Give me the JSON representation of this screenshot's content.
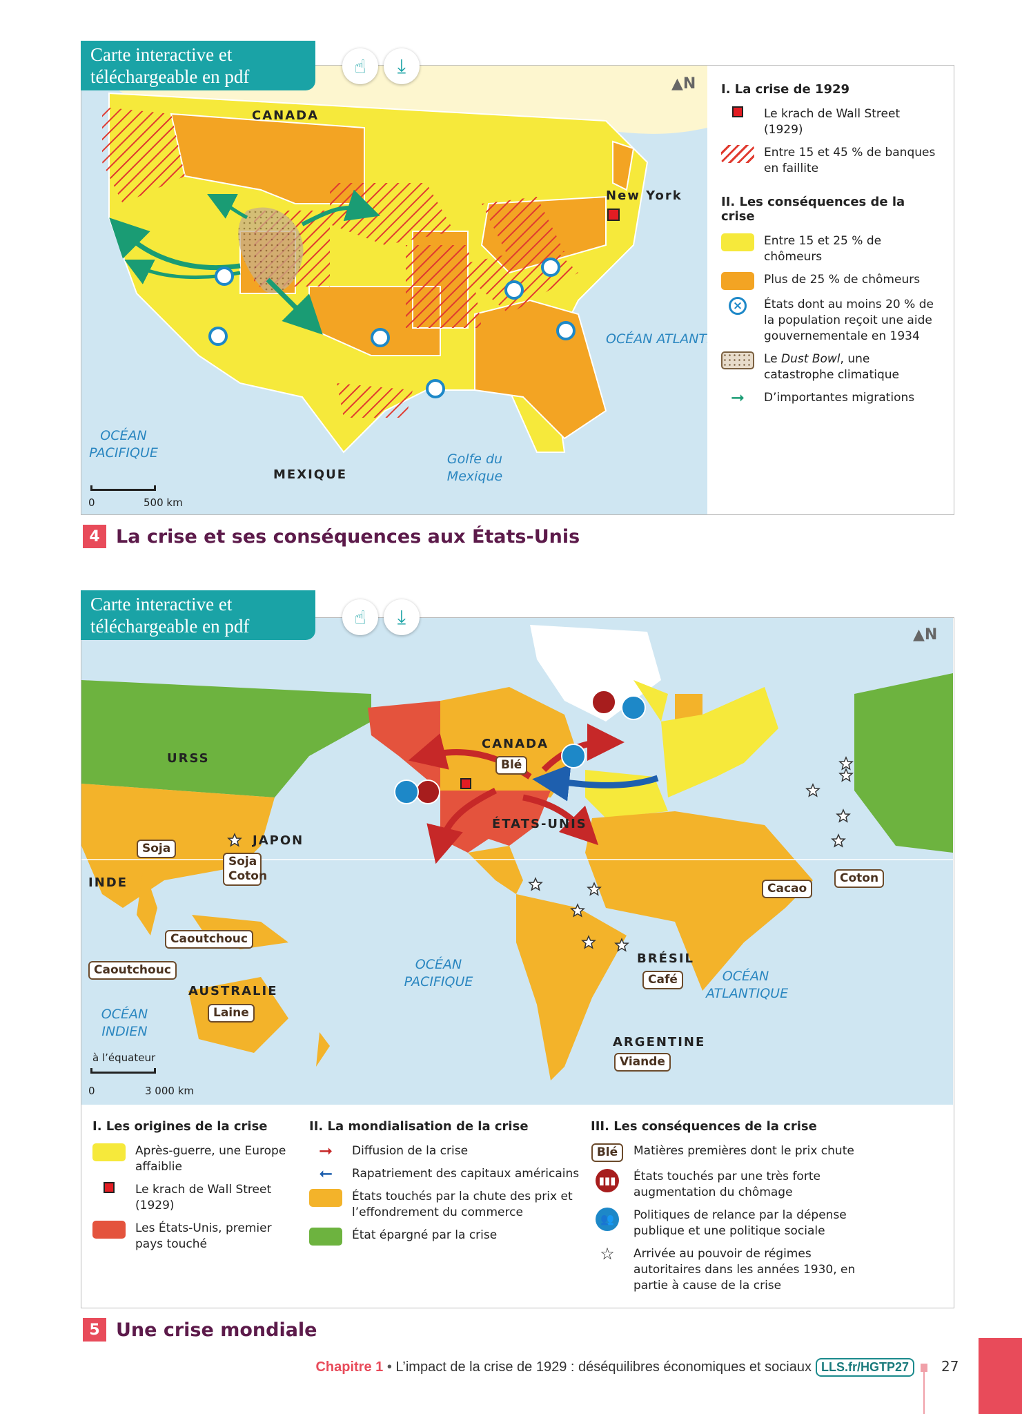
{
  "map4": {
    "tag": "Carte interactive et téléchargeable en pdf",
    "icons": [
      "touch-icon",
      "download-icon"
    ],
    "labels": {
      "canada": "CANADA",
      "new_york": "New York",
      "mexique": "MEXIQUE",
      "ocean_atlantique": "OCÉAN ATLANTIQUE",
      "ocean_pacifique": "OCÉAN PACIFIQUE",
      "golfe": "Golfe du Mexique"
    },
    "scale": {
      "zero": "0",
      "distance": "500 km"
    },
    "legend": {
      "section1": "I. La crise de 1929",
      "krach": "Le krach de Wall Street (1929)",
      "banques": "Entre 15 et 45 % de banques en faillite",
      "section2": "II. Les conséquences de la crise",
      "chom_15_25": "Entre 15 et 25 % de chômeurs",
      "chom_25": "Plus de 25 % de chômeurs",
      "aide": "États dont au moins 20 % de la population reçoit une aide gouvernementale en 1934",
      "dust_pre": "Le ",
      "dust_em": "Dust Bowl",
      "dust_post": ", une catastrophe climatique",
      "migrations": "D’importantes migrations"
    },
    "caption": {
      "number": "4",
      "title": "La crise et ses conséquences aux États-Unis"
    }
  },
  "map5": {
    "tag": "Carte interactive et téléchargeable en pdf",
    "labels": {
      "urss": "URSS",
      "canada": "CANADA",
      "etats_unis": "ÉTATS-UNIS",
      "japon": "JAPON",
      "inde": "INDE",
      "australie": "AUSTRALIE",
      "bresil": "BRÉSIL",
      "argentine": "ARGENTINE",
      "ocean_pacifique": "OCÉAN PACIFIQUE",
      "ocean_atlantique": "OCÉAN ATLANTIQUE",
      "ocean_indien": "OCÉAN INDIEN"
    },
    "products": {
      "ble": "Blé",
      "soja": "Soja",
      "soja_coton": "Soja Coton",
      "caoutchouc1": "Caoutchouc",
      "caoutchouc2": "Caoutchouc",
      "laine": "Laine",
      "cafe": "Café",
      "viande": "Viande",
      "cacao": "Cacao",
      "coton": "Coton"
    },
    "scale": {
      "note": "à l’équateur",
      "zero": "0",
      "distance": "3 000 km"
    },
    "legend": {
      "col1": {
        "title": "I. Les origines de la crise",
        "items": [
          "Après-guerre, une Europe affaiblie",
          "Le krach de Wall Street (1929)",
          "Les États-Unis, premier pays touché"
        ]
      },
      "col2": {
        "title": "II. La mondialisation de la crise",
        "items": [
          "Diffusion de la crise",
          "Rapatriement des capitaux américains",
          "États touchés par la chute des prix et l’effondrement du commerce",
          "État épargné par la crise"
        ]
      },
      "col3": {
        "title": "III. Les conséquences de la crise",
        "sample": "Blé",
        "items": [
          "Matières premières dont le prix chute",
          "États touchés par une très forte augmentation du chômage",
          "Politiques de relance par la dépense publique et une politique sociale",
          "Arrivée au pouvoir de régimes autoritaires dans les années 1930, en partie à cause de la crise"
        ]
      }
    },
    "caption": {
      "number": "5",
      "title": "Une crise mondiale"
    }
  },
  "colors": {
    "yellow": "#f6e93b",
    "orange": "#f3a423",
    "red": "#e4533d",
    "green": "#6db33f",
    "sea": "#cfe6f2",
    "teal": "#1aa3a6",
    "migration": "#1a9c74",
    "diffusion": "#c62828",
    "repatriation": "#1e5fae"
  },
  "footer": {
    "chapter": "Chapitre 1",
    "separator": " • ",
    "title": "L’impact de la crise de 1929 : déséquilibres économiques et sociaux",
    "link": "LLS.fr/HGTP27",
    "page": "27"
  }
}
